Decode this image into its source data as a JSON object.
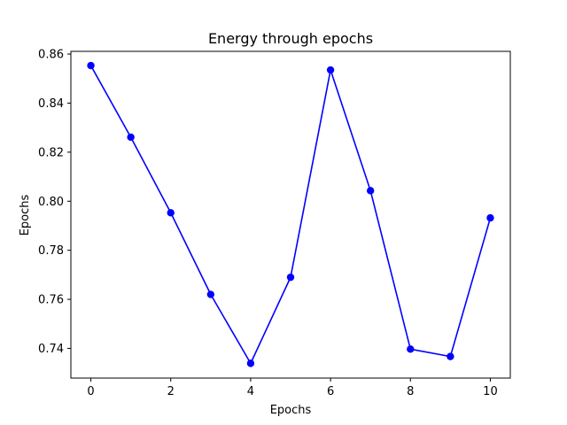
{
  "chart_data": {
    "type": "line",
    "title": "Energy through epochs",
    "xlabel": "Epochs",
    "ylabel": "Epochs",
    "x": [
      0,
      1,
      2,
      3,
      4,
      5,
      6,
      7,
      8,
      9,
      10
    ],
    "series": [
      {
        "values": [
          0.8553,
          0.8261,
          0.7953,
          0.762,
          0.7339,
          0.769,
          0.8535,
          0.8043,
          0.7397,
          0.7367,
          0.7932
        ],
        "color": "#0000ff",
        "marker": "circle"
      }
    ],
    "xlim": [
      -0.5,
      10.5
    ],
    "ylim": [
      0.7279,
      0.8611
    ],
    "xticks": [
      0,
      2,
      4,
      6,
      8,
      10
    ],
    "xtick_labels": [
      "0",
      "2",
      "4",
      "6",
      "8",
      "10"
    ],
    "yticks": [
      0.74,
      0.76,
      0.78,
      0.8,
      0.82,
      0.84,
      0.86
    ],
    "ytick_labels": [
      "0.74",
      "0.76",
      "0.78",
      "0.80",
      "0.82",
      "0.84",
      "0.86"
    ],
    "grid": false,
    "legend": false
  }
}
